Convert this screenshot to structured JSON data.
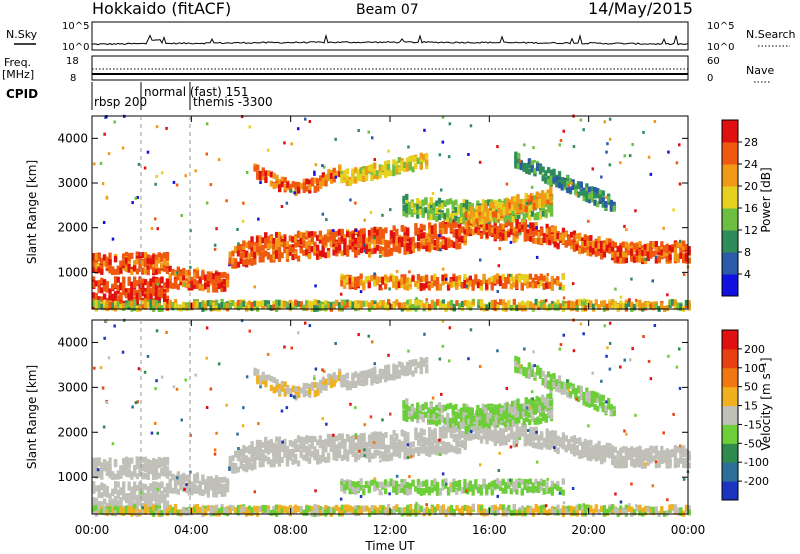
{
  "header": {
    "title": "Hokkaido (fitACF)",
    "beam": "Beam 07",
    "date": "14/May/2015"
  },
  "noise_panel": {
    "left_label": "N.Sky",
    "right_label": "N.Search",
    "left_ticks": [
      "10^5",
      "10^0"
    ],
    "right_ticks": [
      "10^5",
      "10^0"
    ]
  },
  "freq_panel": {
    "left_label_1": "Freq.",
    "left_label_2": "[MHz]",
    "right_label": "Nave",
    "left_ticks": [
      "18",
      "8"
    ],
    "right_ticks": [
      "60",
      "0"
    ]
  },
  "cpid": {
    "label": "CPID",
    "segments": [
      "rbsp 200",
      "normal (fast) 151",
      "themis -3300"
    ]
  },
  "x_axis": {
    "label": "Time UT",
    "ticks": [
      "00:00",
      "04:00",
      "08:00",
      "12:00",
      "16:00",
      "20:00",
      "00:00"
    ]
  },
  "chart_data": [
    {
      "type": "heatmap",
      "quantity": "power",
      "x_range_hours": [
        0,
        24
      ],
      "y_range_km": [
        180,
        4500
      ],
      "ylabel": "Slant Range [km]",
      "y_ticks": [
        1000,
        2000,
        3000,
        4000
      ],
      "colorbar": {
        "label": "Power [dB]",
        "ticks": [
          "4",
          "8",
          "12",
          "16",
          "20",
          "24",
          "28"
        ],
        "colors": [
          "#1010e0",
          "#2a5aa8",
          "#2e8c5a",
          "#6cbf40",
          "#e6d020",
          "#f09a18",
          "#f05a10",
          "#e01010"
        ]
      }
    },
    {
      "type": "heatmap",
      "quantity": "velocity",
      "x_range_hours": [
        0,
        24
      ],
      "y_range_km": [
        180,
        4500
      ],
      "ylabel": "Slant Range [km]",
      "y_ticks": [
        1000,
        2000,
        3000,
        4000
      ],
      "colorbar": {
        "label": "Velocity [m s⁻¹]",
        "ticks": [
          "200",
          "100",
          "50",
          "15",
          "-15",
          "-50",
          "-100",
          "-200"
        ],
        "colors": [
          "#1c34c0",
          "#2e6e9a",
          "#2e8a4e",
          "#6ccf38",
          "#c0c0b8",
          "#f0b020",
          "#f07810",
          "#e84010",
          "#e01010"
        ]
      }
    }
  ],
  "colors": {
    "ground_scatter": "#c0c0b8",
    "bg": "#ffffff"
  }
}
